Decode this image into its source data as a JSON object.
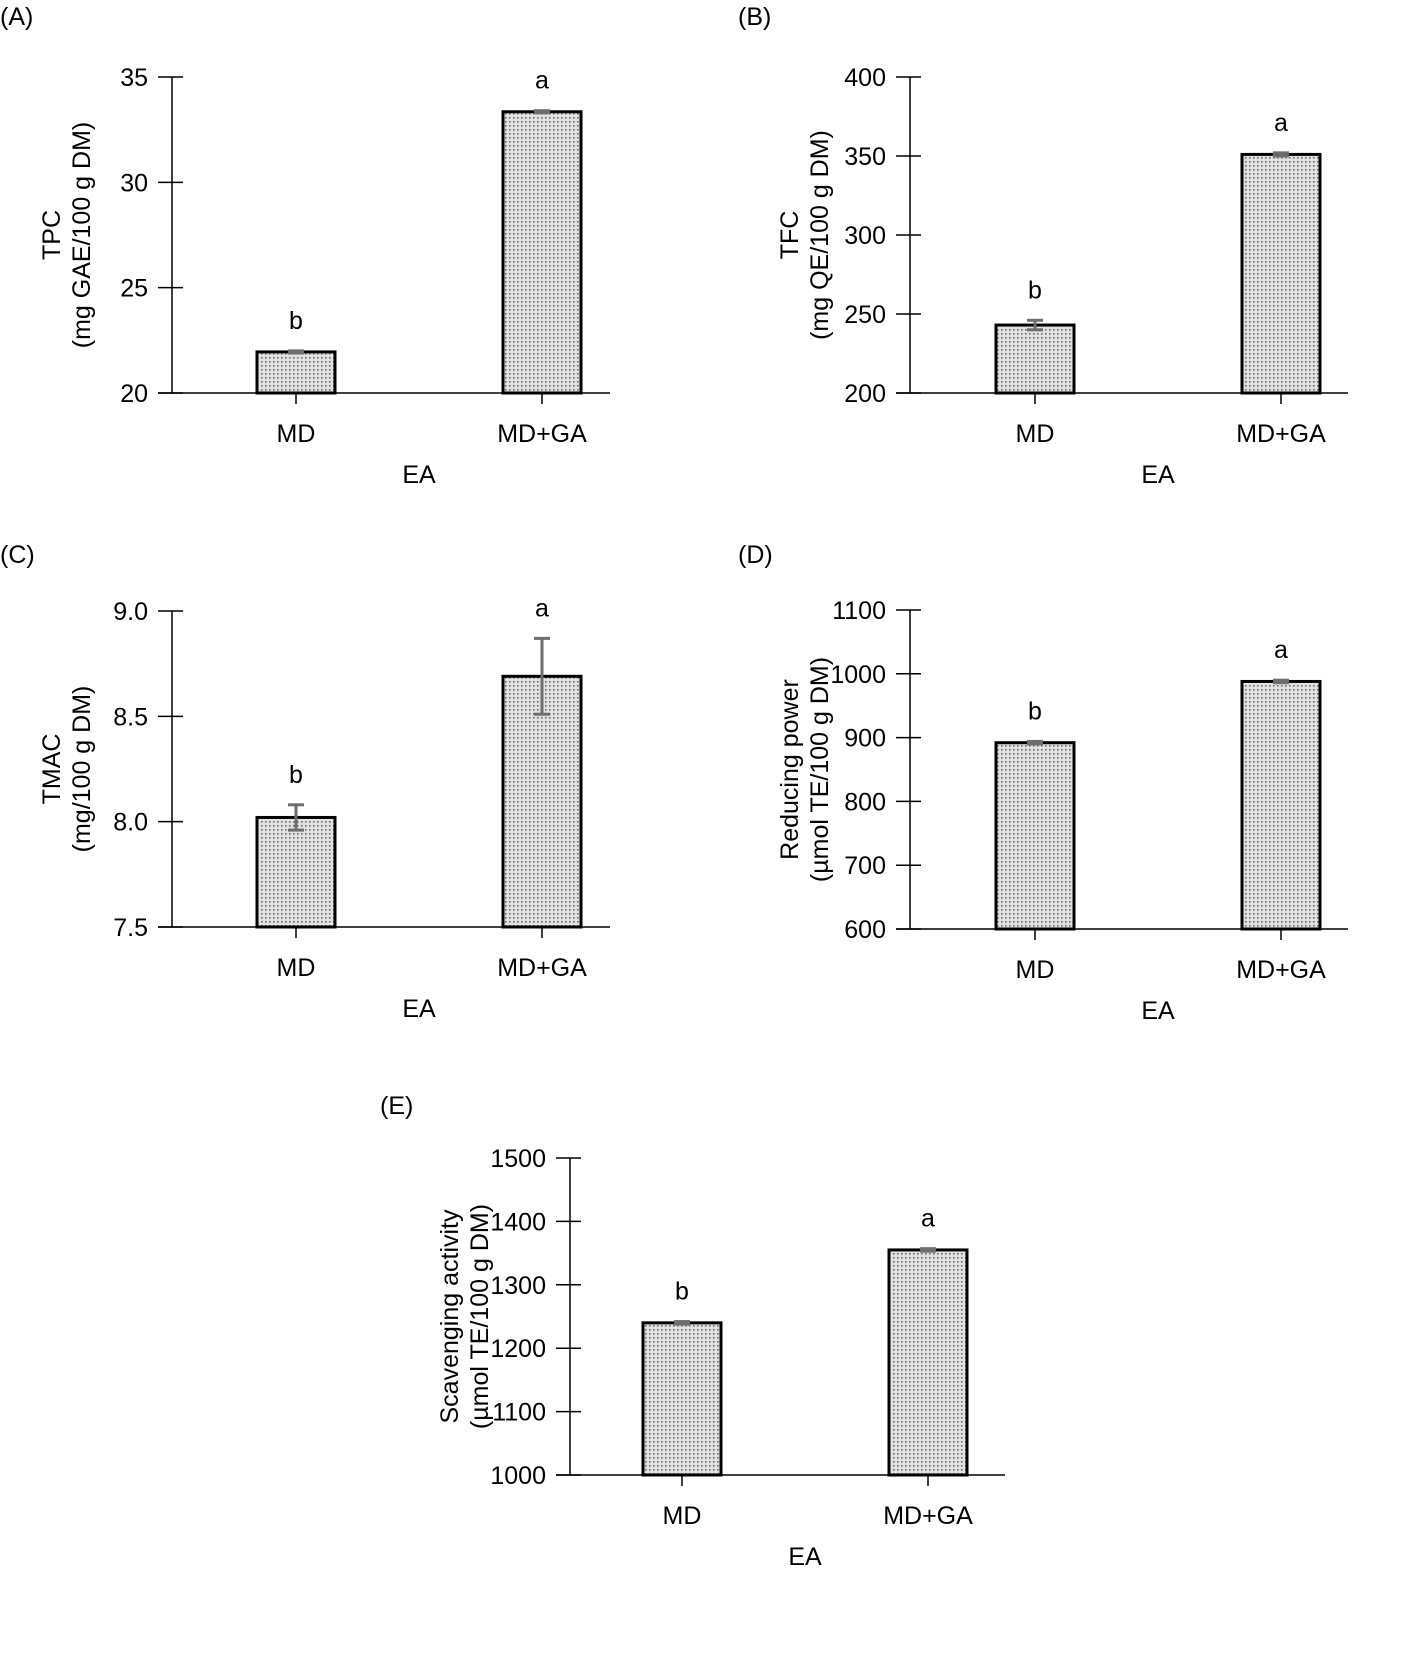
{
  "chart_data": [
    {
      "type": "bar",
      "panel_label": "(A)",
      "categories": [
        "MD",
        "MD+GA"
      ],
      "values": [
        21.95,
        33.35
      ],
      "errors": [
        0.05,
        0.05
      ],
      "significance": [
        "b",
        "a"
      ],
      "xlabel": "EA",
      "ylabel": [
        "TPC",
        "(mg GAE/100 g DM)"
      ],
      "ylim": [
        20,
        35
      ],
      "yticks": [
        "20",
        "25",
        "30",
        "35"
      ],
      "ytick_values": [
        20,
        25,
        30,
        35
      ],
      "grid": false
    },
    {
      "type": "bar",
      "panel_label": "(B)",
      "categories": [
        "MD",
        "MD+GA"
      ],
      "values": [
        243,
        351
      ],
      "errors": [
        3,
        1
      ],
      "significance": [
        "b",
        "a"
      ],
      "xlabel": "EA",
      "ylabel": [
        "TFC",
        "(mg QE/100 g DM)"
      ],
      "ylim": [
        200,
        400
      ],
      "yticks": [
        "200",
        "250",
        "300",
        "350",
        "400"
      ],
      "ytick_values": [
        200,
        250,
        300,
        350,
        400
      ],
      "grid": false
    },
    {
      "type": "bar",
      "panel_label": "(C)",
      "categories": [
        "MD",
        "MD+GA"
      ],
      "values": [
        8.02,
        8.69
      ],
      "errors": [
        0.06,
        0.18
      ],
      "significance": [
        "b",
        "a"
      ],
      "xlabel": "EA",
      "ylabel": [
        "TMAC",
        "(mg/100 g DM)"
      ],
      "ylim": [
        7.5,
        9.0
      ],
      "yticks": [
        "7.5",
        "8.0",
        "8.5",
        "9.0"
      ],
      "ytick_values": [
        7.5,
        8.0,
        8.5,
        9.0
      ],
      "grid": false
    },
    {
      "type": "bar",
      "panel_label": "(D)",
      "categories": [
        "MD",
        "MD+GA"
      ],
      "values": [
        892,
        988
      ],
      "errors": [
        2,
        2
      ],
      "significance": [
        "b",
        "a"
      ],
      "xlabel": "EA",
      "ylabel": [
        "Reducing power",
        "(µmol TE/100 g DM)"
      ],
      "ylim": [
        600,
        1100
      ],
      "yticks": [
        "600",
        "700",
        "800",
        "900",
        "1000",
        "1100"
      ],
      "ytick_values": [
        600,
        700,
        800,
        900,
        1000,
        1100
      ],
      "grid": false
    },
    {
      "type": "bar",
      "panel_label": "(E)",
      "categories": [
        "MD",
        "MD+GA"
      ],
      "values": [
        1240,
        1355
      ],
      "errors": [
        2,
        2
      ],
      "significance": [
        "b",
        "a"
      ],
      "xlabel": "EA",
      "ylabel": [
        "Scavenging activity",
        "(µmol TE/100 g DM)"
      ],
      "ylim": [
        1000,
        1500
      ],
      "yticks": [
        "1000",
        "1100",
        "1200",
        "1300",
        "1400",
        "1500"
      ],
      "ytick_values": [
        1000,
        1100,
        1200,
        1300,
        1400,
        1500
      ],
      "grid": false
    }
  ],
  "colors": {
    "bar_fill": "#d9d9d9",
    "bar_dots": "#6a6a6a",
    "bar_stroke": "#000000",
    "error_bar": "#6e6e6e"
  }
}
